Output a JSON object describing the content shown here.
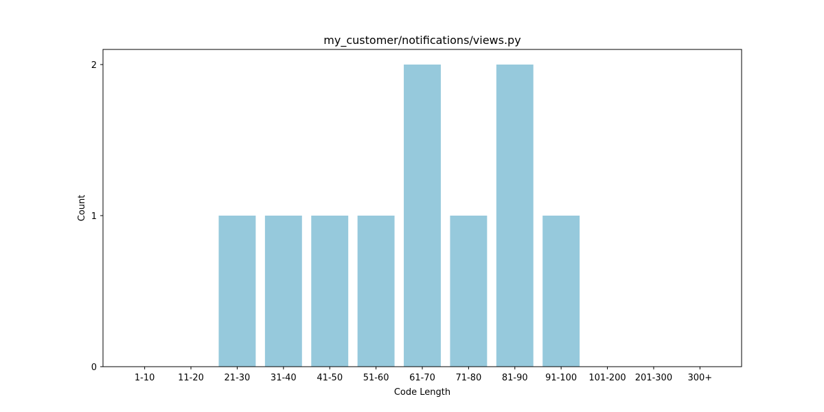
{
  "chart_data": {
    "type": "bar",
    "title": "my_customer/notifications/views.py",
    "xlabel": "Code Length",
    "ylabel": "Count",
    "categories": [
      "1-10",
      "11-20",
      "21-30",
      "31-40",
      "41-50",
      "51-60",
      "61-70",
      "71-80",
      "81-90",
      "91-100",
      "101-200",
      "201-300",
      "300+"
    ],
    "values": [
      0,
      0,
      1,
      1,
      1,
      1,
      2,
      1,
      2,
      1,
      0,
      0,
      0
    ],
    "ylim": [
      0,
      2.1
    ],
    "yticks": [
      0,
      1,
      2
    ],
    "grid": false,
    "bar_color": "#96c9dc"
  }
}
